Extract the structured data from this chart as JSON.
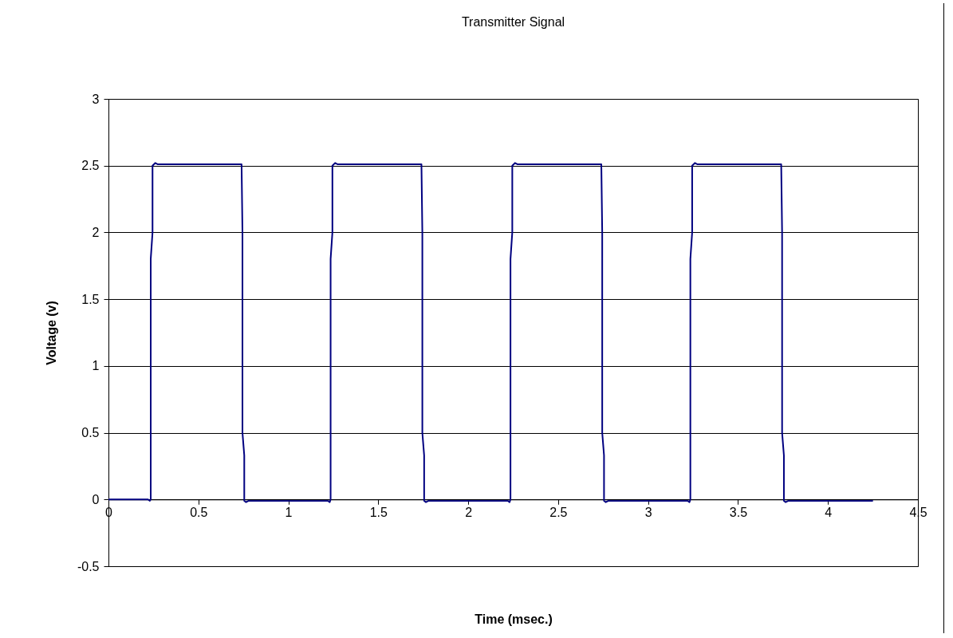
{
  "chart_data": {
    "type": "line",
    "title": "Transmitter Signal",
    "xlabel": "Time (msec.)",
    "ylabel": "Voltage (v)",
    "x": [
      0,
      0.22,
      0.23,
      0.235,
      0.235,
      0.245,
      0.245,
      0.26,
      0.275,
      0.74,
      0.745,
      0.745,
      0.755,
      0.755,
      0.765,
      0.78,
      1.22,
      1.23,
      1.235,
      1.235,
      1.245,
      1.245,
      1.26,
      1.275,
      1.74,
      1.745,
      1.745,
      1.755,
      1.755,
      1.765,
      1.78,
      2.22,
      2.23,
      2.235,
      2.235,
      2.245,
      2.245,
      2.26,
      2.275,
      2.74,
      2.745,
      2.745,
      2.755,
      2.755,
      2.765,
      2.78,
      3.22,
      3.23,
      3.235,
      3.235,
      3.245,
      3.245,
      3.26,
      3.275,
      3.74,
      3.745,
      3.745,
      3.755,
      3.755,
      3.765,
      3.78,
      4.25
    ],
    "series": [
      {
        "color": "#000080",
        "values": [
          0,
          0,
          -0.01,
          0,
          1.8,
          2.0,
          2.5,
          2.52,
          2.51,
          2.51,
          2.0,
          0.5,
          0.33,
          -0.01,
          -0.02,
          -0.01,
          -0.01,
          -0.02,
          0,
          1.8,
          2.0,
          2.5,
          2.52,
          2.51,
          2.51,
          2.0,
          0.5,
          0.33,
          -0.01,
          -0.02,
          -0.01,
          -0.01,
          -0.02,
          0,
          1.8,
          2.0,
          2.5,
          2.52,
          2.51,
          2.51,
          2.0,
          0.5,
          0.33,
          -0.01,
          -0.02,
          -0.01,
          -0.01,
          -0.02,
          0,
          1.8,
          2.0,
          2.5,
          2.52,
          2.51,
          2.51,
          2.0,
          0.5,
          0.33,
          -0.01,
          -0.02,
          -0.01,
          -0.01
        ]
      }
    ],
    "xlim": [
      0,
      4.5
    ],
    "xticks": [
      0,
      0.5,
      1,
      1.5,
      2,
      2.5,
      3,
      3.5,
      4,
      4.5
    ],
    "ylim": [
      -0.5,
      3
    ],
    "yticks": [
      -0.5,
      0,
      0.5,
      1,
      1.5,
      2,
      2.5,
      3
    ],
    "grid": "y",
    "marker": "none",
    "line_style": "solid",
    "legend": false
  }
}
